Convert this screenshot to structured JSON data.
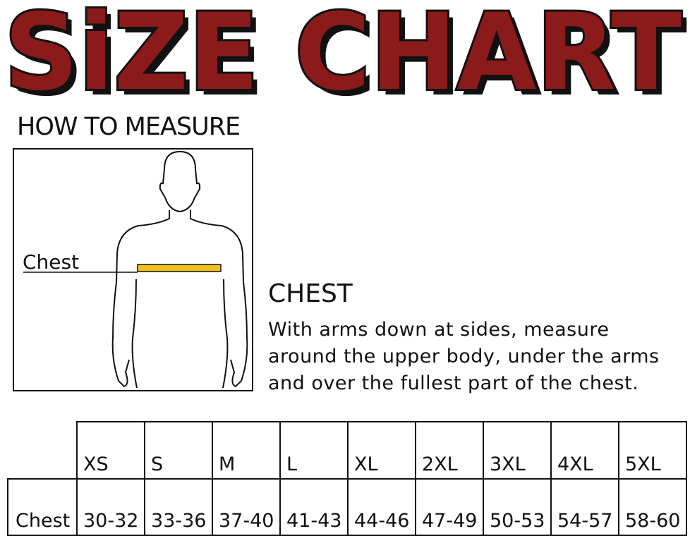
{
  "header": {
    "title": "SiZE CHART"
  },
  "how_to_measure": {
    "title": "HOW TO MEASURE",
    "figure_label": "Chest"
  },
  "chest": {
    "heading": "CHEST",
    "description_lines": [
      "With arms down at sides, measure",
      "around the upper body, under the arms",
      "and over the fullest part of the chest."
    ]
  },
  "table": {
    "header": [
      "XS",
      "S",
      "M",
      "L",
      "XL",
      "2XL",
      "3XL",
      "4XL",
      "5XL"
    ],
    "rows": [
      [
        "Chest",
        "30-32",
        "33-36",
        "37-40",
        "41-43",
        "44-46",
        "47-49",
        "50-53",
        "54-57",
        "58-60"
      ]
    ]
  }
}
